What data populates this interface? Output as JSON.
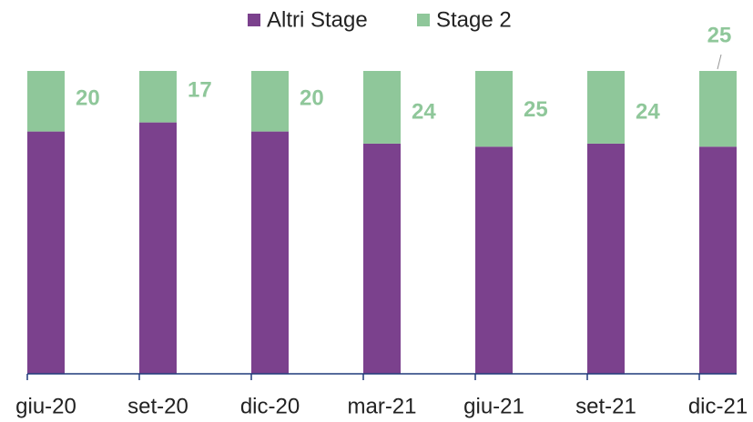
{
  "chart_data": {
    "type": "stacked_bar",
    "categories": [
      "giu-20",
      "set-20",
      "dic-20",
      "mar-21",
      "giu-21",
      "set-21",
      "dic-21"
    ],
    "series": [
      {
        "name": "Altri Stage",
        "color": "#7b418d",
        "values": [
          80,
          83,
          80,
          76,
          75,
          76,
          75
        ]
      },
      {
        "name": "Stage 2",
        "color": "#8fc79a",
        "values": [
          20,
          17,
          20,
          24,
          25,
          24,
          25
        ]
      }
    ],
    "data_labels_series": 1,
    "legend": "top"
  }
}
